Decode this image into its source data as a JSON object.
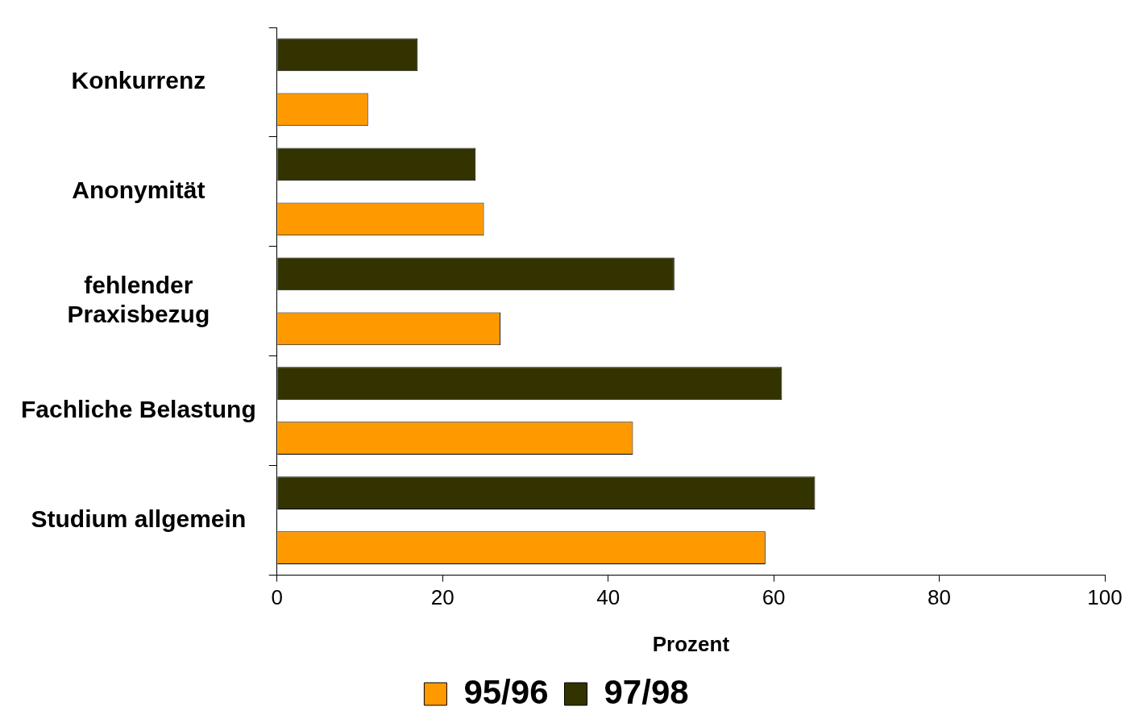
{
  "chart_data": {
    "type": "bar",
    "orientation": "horizontal",
    "xlabel": "Prozent",
    "categories": [
      "Konkurrenz",
      "Anonymität",
      "fehlender Praxisbezug",
      "Fachliche Belastung",
      "Studium allgemein"
    ],
    "series": [
      {
        "name": "95/96",
        "color": "#ff9900",
        "values": [
          11,
          25,
          27,
          43,
          59
        ]
      },
      {
        "name": "97/98",
        "color": "#333300",
        "values": [
          17,
          24,
          48,
          61,
          65
        ]
      }
    ],
    "xlim": [
      0,
      100
    ],
    "xticks": [
      0,
      20,
      40,
      60,
      80,
      100
    ],
    "grid": false,
    "legend": "bottom"
  }
}
